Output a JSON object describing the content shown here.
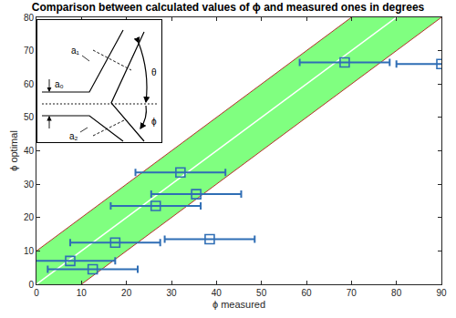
{
  "chart_data": {
    "type": "scatter",
    "title": "Comparison between calculated values of ϕ and measured ones in degrees",
    "x_label": "ϕ measured",
    "y_label": "ϕ optimal",
    "x": [
      68.5,
      90,
      32,
      35.5,
      26.5,
      17.5,
      38.5,
      7.5,
      12.5
    ],
    "values": [
      66.5,
      66,
      33.5,
      27,
      23.5,
      12.5,
      13.5,
      7,
      4.5
    ],
    "x_error": [
      10,
      10,
      10,
      10,
      10,
      10,
      10,
      10,
      10
    ],
    "color": "#2f6eb5",
    "marker": "square-open",
    "xlim": [
      0,
      90
    ],
    "ylim": [
      0,
      80
    ],
    "xticks": [
      0,
      10,
      20,
      30,
      40,
      50,
      60,
      70,
      80,
      90
    ],
    "yticks": [
      0,
      10,
      20,
      30,
      40,
      50,
      60,
      70,
      80
    ],
    "grid": false,
    "band": {
      "slope": 1,
      "intercept": 0,
      "halfwidth": 10,
      "color": "#80ff80"
    },
    "inset_labels": {
      "a0": "a₀",
      "a1": "a₁",
      "a2": "a₂",
      "theta": "θ",
      "phi": "ϕ"
    }
  }
}
